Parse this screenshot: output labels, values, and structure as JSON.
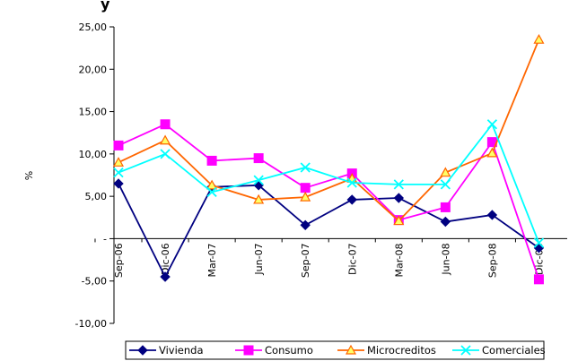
{
  "chart_data": {
    "type": "line",
    "title_fragment": "y",
    "ylabel": "%",
    "xlabel": "",
    "ylim": [
      -10,
      25
    ],
    "yticks": [
      {
        "value": 25,
        "label": "25,00"
      },
      {
        "value": 20,
        "label": "20,00"
      },
      {
        "value": 15,
        "label": "15,00"
      },
      {
        "value": 10,
        "label": "10,00"
      },
      {
        "value": 5,
        "label": "5,00"
      },
      {
        "value": 0,
        "label": "-"
      },
      {
        "value": -5,
        "label": "-5,00"
      },
      {
        "value": -10,
        "label": "-10,00"
      }
    ],
    "categories": [
      "Sep-06",
      "Dic-06",
      "Mar-07",
      "Jun-07",
      "Sep-07",
      "Dic-07",
      "Mar-08",
      "Jun-08",
      "Sep-08",
      "Dic-08"
    ],
    "grid": false,
    "legend_position": "bottom",
    "series": [
      {
        "name": "Vivienda",
        "color": "#000080",
        "marker": "diamond",
        "values": [
          6.5,
          -4.5,
          6.1,
          6.3,
          1.6,
          4.6,
          4.8,
          2.0,
          2.8,
          -1.1
        ]
      },
      {
        "name": "Consumo",
        "color": "#ff00ff",
        "marker": "square",
        "values": [
          11.0,
          13.5,
          9.2,
          9.5,
          6.0,
          7.7,
          2.2,
          3.7,
          11.4,
          -4.8
        ]
      },
      {
        "name": "Microcreditos",
        "color": "#ff6600",
        "marker": "triangle",
        "values": [
          9.0,
          11.6,
          6.3,
          4.6,
          4.9,
          7.1,
          2.1,
          7.8,
          10.1,
          23.5
        ]
      },
      {
        "name": "Comerciales",
        "color": "#00ffff",
        "marker": "x",
        "values": [
          7.8,
          10.0,
          5.5,
          6.9,
          8.4,
          6.6,
          6.4,
          6.4,
          13.5,
          -0.5
        ]
      }
    ]
  }
}
